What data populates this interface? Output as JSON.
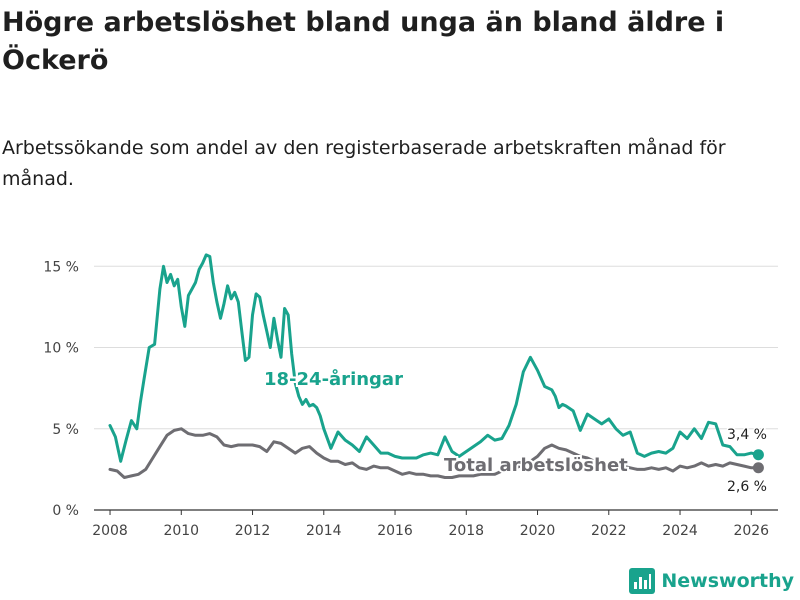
{
  "header": {
    "title": "Högre arbetslöshet bland unga än bland äldre i Öckerö",
    "subtitle": "Arbetssökande som andel av den registerbaserade arbetskraften månad för månad."
  },
  "brand": {
    "name": "Newsworthy",
    "icon": "bar-chart-logo-icon",
    "color": "#19a38d"
  },
  "chart_data": {
    "type": "line",
    "title": "Högre arbetslöshet bland unga än bland äldre i Öckerö",
    "subtitle": "Arbetssökande som andel av den registerbaserade arbetskraften månad för månad.",
    "xlabel": "",
    "ylabel": "",
    "xlim": [
      2007.55,
      2026.75
    ],
    "ylim": [
      0,
      16
    ],
    "x_ticks": [
      2008,
      2010,
      2012,
      2014,
      2016,
      2018,
      2020,
      2022,
      2024,
      2026
    ],
    "x_tick_labels": [
      "2008",
      "2010",
      "2012",
      "2014",
      "2016",
      "2018",
      "2020",
      "2022",
      "2024",
      "2026"
    ],
    "y_ticks": [
      0,
      5,
      10,
      15
    ],
    "y_tick_labels": [
      "0 %",
      "5 %",
      "10 %",
      "15 %"
    ],
    "grid": true,
    "series": [
      {
        "name": "18-24-åringar",
        "color": "#19a38d",
        "label_text": "18-24-åringar",
        "end_label": "3,4 %",
        "x": [
          2008.0,
          2008.15,
          2008.3,
          2008.45,
          2008.6,
          2008.75,
          2008.85,
          2008.95,
          2009.1,
          2009.25,
          2009.4,
          2009.5,
          2009.6,
          2009.7,
          2009.8,
          2009.9,
          2010.0,
          2010.1,
          2010.2,
          2010.3,
          2010.4,
          2010.5,
          2010.6,
          2010.7,
          2010.8,
          2010.9,
          2011.0,
          2011.1,
          2011.2,
          2011.3,
          2011.4,
          2011.5,
          2011.6,
          2011.7,
          2011.8,
          2011.9,
          2012.0,
          2012.1,
          2012.2,
          2012.3,
          2012.4,
          2012.5,
          2012.6,
          2012.7,
          2012.8,
          2012.9,
          2013.0,
          2013.1,
          2013.2,
          2013.3,
          2013.4,
          2013.5,
          2013.6,
          2013.7,
          2013.8,
          2013.9,
          2014.0,
          2014.2,
          2014.4,
          2014.6,
          2014.8,
          2015.0,
          2015.2,
          2015.4,
          2015.6,
          2015.8,
          2016.0,
          2016.2,
          2016.4,
          2016.6,
          2016.8,
          2017.0,
          2017.2,
          2017.4,
          2017.6,
          2017.8,
          2018.0,
          2018.2,
          2018.4,
          2018.6,
          2018.8,
          2019.0,
          2019.2,
          2019.4,
          2019.6,
          2019.8,
          2020.0,
          2020.2,
          2020.4,
          2020.5,
          2020.6,
          2020.7,
          2020.8,
          2021.0,
          2021.2,
          2021.4,
          2021.6,
          2021.8,
          2022.0,
          2022.2,
          2022.4,
          2022.6,
          2022.8,
          2023.0,
          2023.2,
          2023.4,
          2023.6,
          2023.8,
          2024.0,
          2024.2,
          2024.4,
          2024.6,
          2024.8,
          2025.0,
          2025.2,
          2025.4,
          2025.6,
          2025.8,
          2026.0,
          2026.2
        ],
        "values": [
          5.2,
          4.5,
          3.0,
          4.3,
          5.5,
          5.0,
          6.6,
          8.0,
          10.0,
          10.2,
          13.6,
          15.0,
          14.0,
          14.5,
          13.8,
          14.2,
          12.5,
          11.3,
          13.2,
          13.6,
          14.0,
          14.8,
          15.2,
          15.7,
          15.6,
          14.0,
          12.8,
          11.8,
          12.7,
          13.8,
          13.0,
          13.4,
          12.8,
          11.0,
          9.2,
          9.4,
          12.0,
          13.3,
          13.1,
          12.0,
          11.0,
          10.0,
          11.8,
          10.5,
          9.4,
          12.4,
          12.0,
          9.6,
          7.8,
          7.0,
          6.5,
          6.8,
          6.4,
          6.5,
          6.3,
          5.8,
          5.0,
          3.8,
          4.8,
          4.3,
          4.0,
          3.6,
          4.5,
          4.0,
          3.5,
          3.5,
          3.3,
          3.2,
          3.2,
          3.2,
          3.4,
          3.5,
          3.4,
          4.5,
          3.6,
          3.3,
          3.6,
          3.9,
          4.2,
          4.6,
          4.3,
          4.4,
          5.2,
          6.5,
          8.5,
          9.4,
          8.6,
          7.6,
          7.4,
          7.0,
          6.3,
          6.5,
          6.4,
          6.1,
          4.9,
          5.9,
          5.6,
          5.3,
          5.6,
          5.0,
          4.6,
          4.8,
          3.5,
          3.3,
          3.5,
          3.6,
          3.5,
          3.8,
          4.8,
          4.4,
          5.0,
          4.4,
          5.4,
          5.3,
          4.0,
          3.9,
          3.4,
          3.4,
          3.5,
          3.4
        ]
      },
      {
        "name": "Total arbetslöshet",
        "color": "#6e6d72",
        "label_text": "Total arbetslöshet",
        "end_label": "2,6 %",
        "x": [
          2008.0,
          2008.2,
          2008.4,
          2008.6,
          2008.8,
          2009.0,
          2009.2,
          2009.4,
          2009.6,
          2009.8,
          2010.0,
          2010.2,
          2010.4,
          2010.6,
          2010.8,
          2011.0,
          2011.2,
          2011.4,
          2011.6,
          2011.8,
          2012.0,
          2012.2,
          2012.4,
          2012.6,
          2012.8,
          2013.0,
          2013.2,
          2013.4,
          2013.6,
          2013.8,
          2014.0,
          2014.2,
          2014.4,
          2014.6,
          2014.8,
          2015.0,
          2015.2,
          2015.4,
          2015.6,
          2015.8,
          2016.0,
          2016.2,
          2016.4,
          2016.6,
          2016.8,
          2017.0,
          2017.2,
          2017.4,
          2017.6,
          2017.8,
          2018.0,
          2018.2,
          2018.4,
          2018.6,
          2018.8,
          2019.0,
          2019.2,
          2019.4,
          2019.6,
          2019.8,
          2020.0,
          2020.2,
          2020.4,
          2020.6,
          2020.8,
          2021.0,
          2021.2,
          2021.4,
          2021.6,
          2021.8,
          2022.0,
          2022.2,
          2022.4,
          2022.6,
          2022.8,
          2023.0,
          2023.2,
          2023.4,
          2023.6,
          2023.8,
          2024.0,
          2024.2,
          2024.4,
          2024.6,
          2024.8,
          2025.0,
          2025.2,
          2025.4,
          2025.6,
          2025.8,
          2026.0,
          2026.2
        ],
        "values": [
          2.5,
          2.4,
          2.0,
          2.1,
          2.2,
          2.5,
          3.2,
          3.9,
          4.6,
          4.9,
          5.0,
          4.7,
          4.6,
          4.6,
          4.7,
          4.5,
          4.0,
          3.9,
          4.0,
          4.0,
          4.0,
          3.9,
          3.6,
          4.2,
          4.1,
          3.8,
          3.5,
          3.8,
          3.9,
          3.5,
          3.2,
          3.0,
          3.0,
          2.8,
          2.9,
          2.6,
          2.5,
          2.7,
          2.6,
          2.6,
          2.4,
          2.2,
          2.3,
          2.2,
          2.2,
          2.1,
          2.1,
          2.0,
          2.0,
          2.1,
          2.1,
          2.1,
          2.2,
          2.2,
          2.2,
          2.4,
          2.4,
          2.6,
          2.8,
          3.0,
          3.3,
          3.8,
          4.0,
          3.8,
          3.7,
          3.5,
          3.3,
          3.2,
          3.0,
          2.9,
          2.8,
          2.7,
          2.7,
          2.6,
          2.5,
          2.5,
          2.6,
          2.5,
          2.6,
          2.4,
          2.7,
          2.6,
          2.7,
          2.9,
          2.7,
          2.8,
          2.7,
          2.9,
          2.8,
          2.7,
          2.6,
          2.6
        ]
      }
    ]
  }
}
